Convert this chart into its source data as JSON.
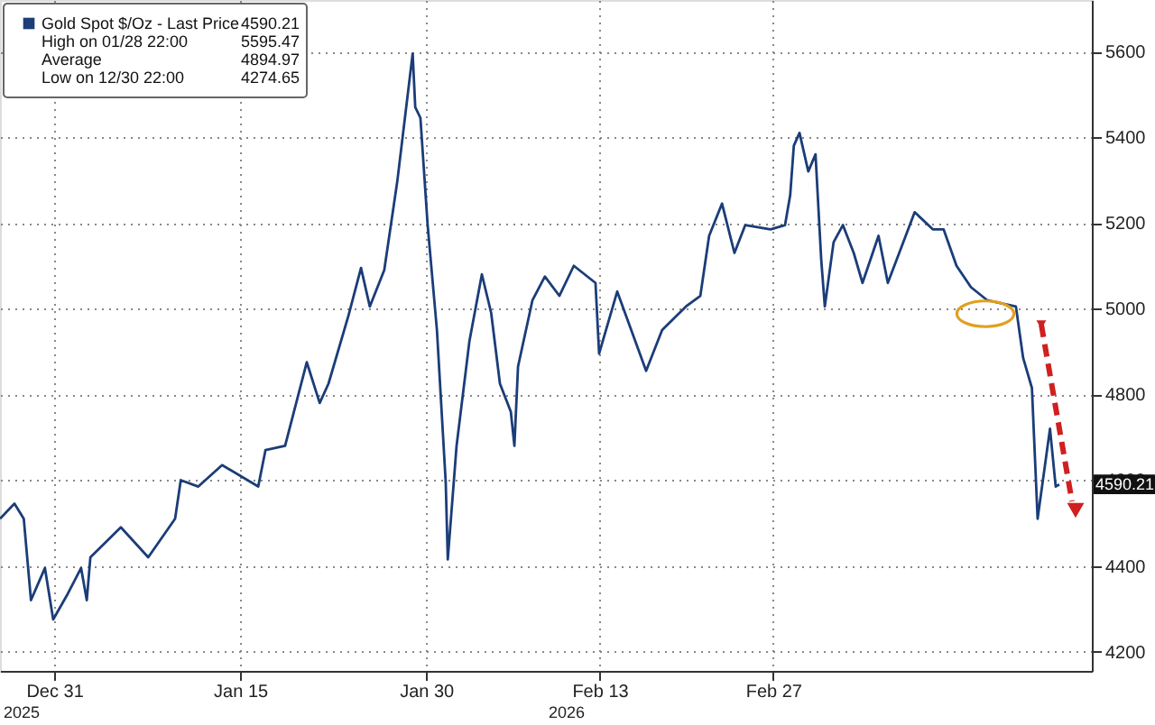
{
  "chart_data": {
    "type": "line",
    "x": [
      "2025-12-26T15:00",
      "2025-12-27T19:00",
      "2025-12-28T13:00",
      "2025-12-29T03:00",
      "2025-12-30T06:00",
      "2025-12-30T22:00",
      "2026-01-01T00:00",
      "2026-01-02T04:00",
      "2026-01-02T15:00",
      "2026-01-02T22:00",
      "2026-01-05T09:00",
      "2026-01-07T14:00",
      "2026-01-09T18:00",
      "2026-01-10T05:00",
      "2026-01-11T15:00",
      "2026-01-13T13:00",
      "2026-01-16T11:00",
      "2026-01-17T01:00",
      "2026-01-18T15:00",
      "2026-01-20T09:00",
      "2026-01-21T10:00",
      "2026-01-22T03:00",
      "2026-01-23T18:00",
      "2026-01-24T18:00",
      "2026-01-25T11:00",
      "2026-01-26T15:00",
      "2026-01-27T16:00",
      "2026-01-28T22:00",
      "2026-01-29T03:00",
      "2026-01-29T13:00",
      "2026-01-30T03:00",
      "2026-01-30T21:00",
      "2026-01-31T14:00",
      "2026-01-31T18:00",
      "2026-02-01T11:00",
      "2026-02-02T12:00",
      "2026-02-03T12:00",
      "2026-02-04T06:00",
      "2026-02-04T23:00",
      "2026-02-05T20:00",
      "2026-02-06T03:00",
      "2026-02-06T10:00",
      "2026-02-07T14:00",
      "2026-02-08T14:00",
      "2026-02-09T18:00",
      "2026-02-10T22:00",
      "2026-02-12T16:00",
      "2026-02-12T23:00",
      "2026-02-14T10:00",
      "2026-02-16T18:00",
      "2026-02-18T01:00",
      "2026-02-19T23:00",
      "2026-02-21T03:00",
      "2026-02-21T20:00",
      "2026-02-22T21:00",
      "2026-02-23T21:00",
      "2026-02-24T18:00",
      "2026-02-26T19:00",
      "2026-02-27T23:00",
      "2026-02-28T09:00",
      "2026-02-28T16:00",
      "2026-03-01T03:00",
      "2026-03-01T20:00",
      "2026-03-02T10:00",
      "2026-03-02T21:00",
      "2026-03-03T04:00",
      "2026-03-03T21:00",
      "2026-03-04T15:00",
      "2026-03-05T12:00",
      "2026-03-06T05:00",
      "2026-03-07T12:00",
      "2026-03-08T06:00",
      "2026-03-10T10:00",
      "2026-03-11T21:00",
      "2026-03-12T18:00",
      "2026-03-13T19:00",
      "2026-03-14T23:00",
      "2026-03-16T06:00",
      "2026-03-18T14:00",
      "2026-03-19T04:00",
      "2026-03-19T21:00",
      "2026-03-20T08:00",
      "2026-03-21T08:00",
      "2026-03-21T19:00",
      "2026-03-22T02:00"
    ],
    "series": [
      {
        "name": "Gold Spot $/Oz - Last Price",
        "color": "#1b3d78",
        "values": [
          4510,
          4545,
          4510,
          4320,
          4395,
          4275,
          4330,
          4395,
          4320,
          4420,
          4490,
          4420,
          4510,
          4600,
          4585,
          4635,
          4585,
          4670,
          4680,
          4875,
          4780,
          4825,
          4985,
          5095,
          5005,
          5090,
          5295,
          5595,
          5470,
          5445,
          5195,
          4950,
          4595,
          4415,
          4680,
          4925,
          5080,
          4990,
          4825,
          4760,
          4680,
          4865,
          5020,
          5075,
          5030,
          5100,
          5060,
          4895,
          5040,
          4855,
          4950,
          5005,
          5030,
          5170,
          5245,
          5130,
          5195,
          5185,
          5195,
          5265,
          5380,
          5410,
          5320,
          5360,
          5115,
          5005,
          5155,
          5195,
          5130,
          5060,
          5170,
          5060,
          5225,
          5185,
          5185,
          5100,
          5050,
          5020,
          5005,
          4885,
          4815,
          4510,
          4720,
          4585,
          4590
        ]
      }
    ],
    "xlim": [
      "2025-12-26T15:00",
      "2026-03-24T17:00"
    ],
    "xticks": [
      {
        "value": "2025-12-31",
        "label": "Dec 31"
      },
      {
        "value": "2026-01-15",
        "label": "Jan 15"
      },
      {
        "value": "2026-01-30",
        "label": "Jan 30"
      },
      {
        "value": "2026-02-13",
        "label": "Feb 13"
      },
      {
        "value": "2026-02-27",
        "label": "Feb 27"
      }
    ],
    "ylim": [
      4155,
      5720
    ],
    "yticks": [
      4200,
      4400,
      4600,
      4800,
      5000,
      5200,
      5400,
      5600
    ],
    "grid": true,
    "line_style": "solid",
    "marker": "none",
    "legend": "top left",
    "annotations": [
      "4590.21",
      "High on 01/28 22:00",
      "5595.47",
      "Average",
      "4894.97",
      "Low on 12/30 22:00",
      "4274.65",
      {
        "text": "4590.21",
        "y": 4590.21
      },
      "2025",
      "2026"
    ]
  }
}
